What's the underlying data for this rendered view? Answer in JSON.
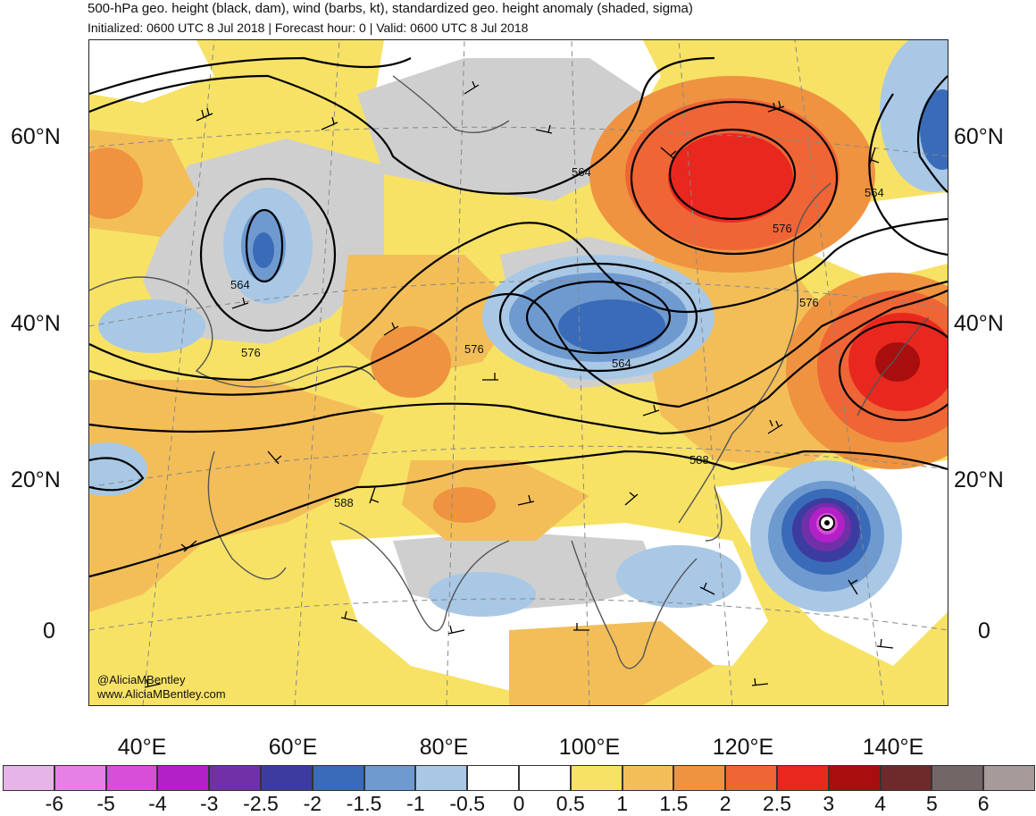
{
  "header": {
    "title": "500-hPa geo. height (black, dam), wind (barbs, kt), standardized geo. height anomaly (shaded, sigma)",
    "subtitle": "Initialized: 0600 UTC 8 Jul 2018 | Forecast hour: 0 | Valid: 0600 UTC 8 Jul 2018"
  },
  "map": {
    "lat_labels": [
      "60°N",
      "40°N",
      "20°N",
      "0"
    ],
    "lon_labels": [
      "40°E",
      "60°E",
      "80°E",
      "100°E",
      "120°E",
      "140°E"
    ],
    "contour_labels": [
      "564",
      "564",
      "564",
      "564",
      "576",
      "576",
      "576",
      "576",
      "588",
      "588"
    ],
    "credit": [
      "@AliciaMBentley",
      "www.AliciaMBentley.com"
    ]
  },
  "colorbar": {
    "labels": [
      "-6",
      "-5",
      "-4",
      "-3",
      "-2.5",
      "-2",
      "-1.5",
      "-1",
      "-0.5",
      "0",
      "0.5",
      "1",
      "1.5",
      "2",
      "2.5",
      "3",
      "4",
      "5",
      "6"
    ],
    "colors": [
      "#e6b4e6",
      "#e680e6",
      "#d84ed8",
      "#b420c8",
      "#7030a8",
      "#3c3ca0",
      "#3a6bb8",
      "#6f9ad0",
      "#a8c8e6",
      "#ffffff",
      "#ffffff",
      "#f7e266",
      "#f3be58",
      "#ef9340",
      "#ef6535",
      "#e8281e",
      "#a80e0e",
      "#6e2a2a",
      "#736666",
      "#a69a9a"
    ]
  }
}
